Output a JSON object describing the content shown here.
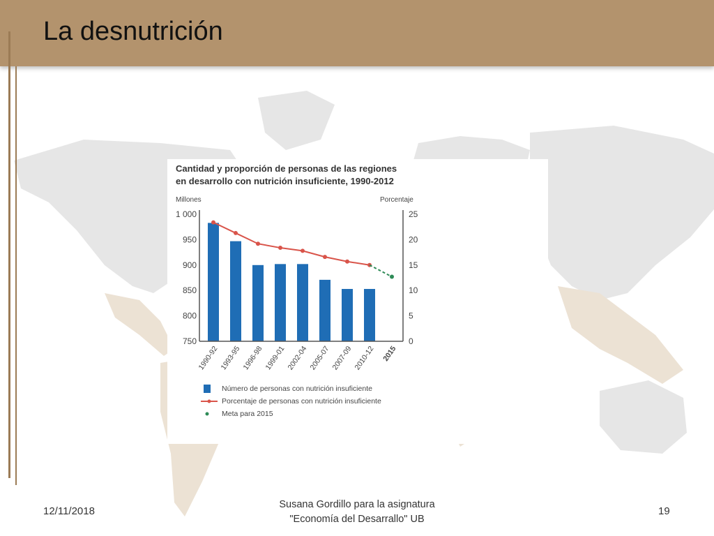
{
  "slide": {
    "title": "La desnutrición",
    "footer_date": "12/11/2018",
    "footer_center_line1": "Susana Gordillo para la asignatura",
    "footer_center_line2": "\"Economía del Desarrallo\" UB",
    "page_number": "19",
    "colors": {
      "header": "#b3936d",
      "map": "#efe6da",
      "map_gray": "#e6e6e6"
    }
  },
  "chart_data": {
    "type": "bar",
    "title_line1": "Cantidad y proporción de personas de las regiones",
    "title_line2": "en desarrollo con nutrición insuficiente, 1990-2012",
    "ylabel_left": "Millones",
    "ylabel_right": "Porcentaje",
    "categories": [
      "1990-92",
      "1993-95",
      "1996-98",
      "1999-01",
      "2002-04",
      "2005-07",
      "2007-09",
      "2010-12",
      "2015"
    ],
    "yticks_left": [
      "1 000",
      "950",
      "900",
      "850",
      "800",
      "750"
    ],
    "yticks_right": [
      "25",
      "20",
      "15",
      "10",
      "5",
      "0"
    ],
    "ylim_left": [
      750,
      1000
    ],
    "ylim_right": [
      0,
      25
    ],
    "series": [
      {
        "name": "Número de personas con nutrición insuficiente",
        "type": "bar",
        "axis": "left",
        "color": "#1f6db5",
        "values": [
          983,
          947,
          900,
          902,
          902,
          871,
          853,
          853,
          null
        ]
      },
      {
        "name": "Porcentaje de personas con nutrición insuficiente",
        "type": "line",
        "axis": "right",
        "color": "#d9544a",
        "values": [
          23.4,
          21.3,
          19.2,
          18.4,
          17.8,
          16.6,
          15.7,
          15.0,
          null
        ]
      },
      {
        "name": "Meta para 2015",
        "type": "dashed-line",
        "axis": "right",
        "color": "#2e8b57",
        "values": [
          null,
          null,
          null,
          null,
          null,
          null,
          null,
          15.0,
          12.7
        ]
      }
    ]
  }
}
